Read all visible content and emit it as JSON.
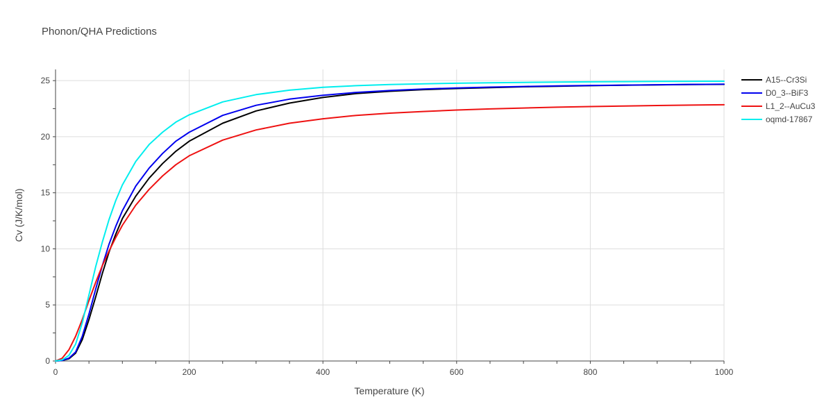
{
  "chart_data": {
    "type": "line",
    "title": "Phonon/QHA Predictions",
    "xlabel": "Temperature (K)",
    "ylabel": "Cv (J/K/mol)",
    "xlim": [
      0,
      1000
    ],
    "ylim": [
      0,
      26
    ],
    "x_ticks": [
      0,
      200,
      400,
      600,
      800,
      1000
    ],
    "y_ticks": [
      0,
      5,
      10,
      15,
      20,
      25
    ],
    "grid": true,
    "legend_position": "right",
    "x": [
      0,
      10,
      20,
      30,
      40,
      50,
      60,
      70,
      80,
      90,
      100,
      120,
      140,
      160,
      180,
      200,
      250,
      300,
      350,
      400,
      450,
      500,
      550,
      600,
      650,
      700,
      750,
      800,
      850,
      900,
      950,
      1000
    ],
    "series": [
      {
        "name": "A15--Cr3Si",
        "color": "#000000",
        "values": [
          0,
          0.05,
          0.2,
          0.7,
          1.9,
          3.7,
          5.7,
          7.8,
          9.7,
          11.3,
          12.7,
          14.7,
          16.3,
          17.6,
          18.7,
          19.6,
          21.2,
          22.3,
          23.0,
          23.5,
          23.85,
          24.05,
          24.2,
          24.3,
          24.38,
          24.45,
          24.5,
          24.55,
          24.59,
          24.62,
          24.65,
          24.67
        ]
      },
      {
        "name": "D0_3--BiF3",
        "color": "#0000ee",
        "values": [
          0,
          0.05,
          0.25,
          0.8,
          2.2,
          4.2,
          6.4,
          8.5,
          10.4,
          12.0,
          13.4,
          15.6,
          17.2,
          18.5,
          19.6,
          20.4,
          21.9,
          22.8,
          23.35,
          23.7,
          23.95,
          24.12,
          24.25,
          24.35,
          24.42,
          24.48,
          24.53,
          24.57,
          24.6,
          24.63,
          24.66,
          24.68
        ]
      },
      {
        "name": "L1_2--AuCu3",
        "color": "#ee1111",
        "values": [
          0,
          0.25,
          1.0,
          2.2,
          3.7,
          5.4,
          7.0,
          8.5,
          9.8,
          11.0,
          12.1,
          13.9,
          15.3,
          16.5,
          17.5,
          18.3,
          19.7,
          20.6,
          21.2,
          21.6,
          21.9,
          22.1,
          22.25,
          22.38,
          22.48,
          22.56,
          22.63,
          22.69,
          22.74,
          22.78,
          22.82,
          22.85
        ]
      },
      {
        "name": "oqmd-17867",
        "color": "#00eeee",
        "values": [
          0,
          0.1,
          0.5,
          1.5,
          3.4,
          5.9,
          8.4,
          10.6,
          12.6,
          14.3,
          15.7,
          17.8,
          19.3,
          20.4,
          21.3,
          21.95,
          23.1,
          23.75,
          24.15,
          24.4,
          24.55,
          24.65,
          24.72,
          24.77,
          24.81,
          24.84,
          24.87,
          24.89,
          24.91,
          24.93,
          24.94,
          24.95
        ]
      }
    ]
  }
}
